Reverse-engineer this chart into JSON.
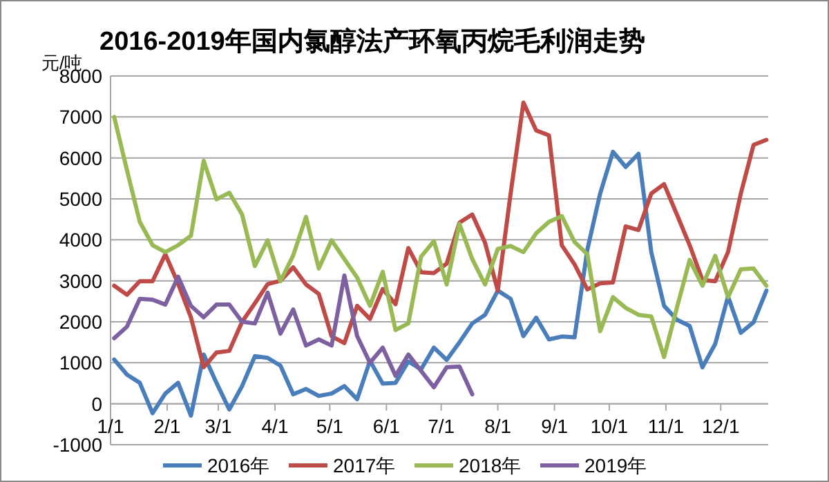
{
  "chart_data": {
    "type": "line",
    "title": "2016-2019年国内氯醇法产环氧丙烷毛利润走势",
    "ylabel": "元/吨",
    "x": [
      "--01-03",
      "--01-10",
      "--01-17",
      "--01-24",
      "--01-31",
      "--02-07",
      "--02-14",
      "--02-21",
      "--02-28",
      "--03-07",
      "--03-14",
      "--03-21",
      "--03-28",
      "--04-04",
      "--04-11",
      "--04-18",
      "--04-25",
      "--05-02",
      "--05-09",
      "--05-16",
      "--05-23",
      "--05-30",
      "--06-06",
      "--06-13",
      "--06-20",
      "--06-27",
      "--07-04",
      "--07-11",
      "--07-18",
      "--07-25",
      "--08-01",
      "--08-08",
      "--08-15",
      "--08-22",
      "--08-29",
      "--09-05",
      "--09-12",
      "--09-19",
      "--09-26",
      "--10-03",
      "--10-10",
      "--10-17",
      "--10-24",
      "--10-31",
      "--11-07",
      "--11-14",
      "--11-21",
      "--11-28",
      "--12-05",
      "--12-12",
      "--12-19",
      "--12-26"
    ],
    "series": [
      {
        "name": "2016年",
        "color": "#4a7ebb",
        "values": [
          1080,
          710,
          510,
          -230,
          250,
          510,
          -290,
          1200,
          510,
          -140,
          430,
          1160,
          1120,
          930,
          230,
          360,
          190,
          250,
          430,
          110,
          1050,
          490,
          510,
          1030,
          840,
          1370,
          1070,
          1500,
          1960,
          2170,
          2760,
          2560,
          1650,
          2100,
          1570,
          1640,
          1620,
          3760,
          5130,
          6150,
          5780,
          6100,
          3700,
          2390,
          2050,
          1900,
          890,
          1460,
          2620,
          1730,
          1990,
          2760
        ]
      },
      {
        "name": "2017年",
        "color": "#be4b48",
        "values": [
          2880,
          2660,
          2990,
          2990,
          3650,
          2930,
          2110,
          890,
          1250,
          1290,
          2000,
          2450,
          2920,
          3000,
          3330,
          2910,
          2680,
          1650,
          1480,
          2390,
          2070,
          2800,
          2430,
          3800,
          3210,
          3190,
          3420,
          4420,
          4620,
          3930,
          2760,
          5130,
          7350,
          6670,
          6550,
          3870,
          3400,
          2790,
          2940,
          2960,
          4330,
          4240,
          5130,
          5360,
          4620,
          3870,
          3020,
          2990,
          3700,
          5130,
          6320,
          6440
        ]
      },
      {
        "name": "2018年",
        "color": "#98b954",
        "values": [
          7000,
          5700,
          4440,
          3870,
          3700,
          3870,
          4100,
          5930,
          4990,
          5150,
          4620,
          3360,
          3990,
          2990,
          3620,
          4560,
          3300,
          3990,
          3530,
          3080,
          2390,
          3220,
          1800,
          1960,
          3590,
          3970,
          2910,
          4390,
          3530,
          2910,
          3780,
          3850,
          3700,
          4160,
          4440,
          4580,
          3950,
          3650,
          1770,
          2600,
          2340,
          2170,
          2130,
          1140,
          2340,
          3510,
          2880,
          3610,
          2600,
          3280,
          3300,
          2880
        ]
      },
      {
        "name": "2019年",
        "color": "#7d60a0",
        "values": [
          1600,
          1880,
          2560,
          2540,
          2420,
          3100,
          2390,
          2110,
          2420,
          2420,
          2000,
          1960,
          2710,
          1710,
          2300,
          1420,
          1570,
          1420,
          3130,
          1650,
          1000,
          1370,
          680,
          1200,
          800,
          400,
          890,
          910,
          230,
          null,
          null,
          null,
          null,
          null,
          null,
          null,
          null,
          null,
          null,
          null,
          null,
          null,
          null,
          null,
          null,
          null,
          null,
          null,
          null,
          null,
          null,
          null
        ]
      }
    ],
    "xlim": [
      "--01-01",
      "--12-27"
    ],
    "xticks": [
      {
        "value": "--01-01",
        "label": "1/1"
      },
      {
        "value": "--02-01",
        "label": "2/1"
      },
      {
        "value": "--03-01",
        "label": "3/1"
      },
      {
        "value": "--04-01",
        "label": "4/1"
      },
      {
        "value": "--05-01",
        "label": "5/1"
      },
      {
        "value": "--06-01",
        "label": "6/1"
      },
      {
        "value": "--07-01",
        "label": "7/1"
      },
      {
        "value": "--08-01",
        "label": "8/1"
      },
      {
        "value": "--09-01",
        "label": "9/1"
      },
      {
        "value": "--10-01",
        "label": "10/1"
      },
      {
        "value": "--11-01",
        "label": "11/1"
      },
      {
        "value": "--12-01",
        "label": "12/1"
      }
    ],
    "ylim": [
      -1000,
      8000
    ],
    "yticks": [
      -1000,
      0,
      1000,
      2000,
      3000,
      4000,
      5000,
      6000,
      7000,
      8000
    ],
    "grid": "y",
    "legend": "bottom"
  }
}
